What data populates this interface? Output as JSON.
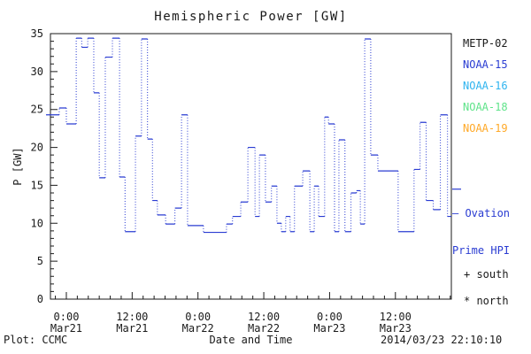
{
  "title": "Hemispheric Power [GW]",
  "colors": {
    "axis": "#1a1a1a",
    "line_blue": "#2a3cd2",
    "metp02": "#1a1a1a",
    "noaa15": "#2a3cd2",
    "noaa16": "#2fb4ef",
    "noaa18": "#5fe38a",
    "noaa19": "#ffa928"
  },
  "legend": {
    "items": [
      {
        "label": "METP-02",
        "color": "#1a1a1a"
      },
      {
        "label": "NOAA-15",
        "color": "#2a3cd2"
      },
      {
        "label": "NOAA-16",
        "color": "#2fb4ef"
      },
      {
        "label": "NOAA-18",
        "color": "#5fe38a"
      },
      {
        "label": "NOAA-19",
        "color": "#ffa928"
      }
    ]
  },
  "annotations": {
    "ovation_line1": "– Ovation",
    "ovation_line2": "Prime HPI",
    "ovation_pointer_gw": 14.5,
    "south": "+ south",
    "north": "* north",
    "credit": "Plot: CCMC",
    "timestamp": "2014/03/23 22:10:10"
  },
  "chart_data": {
    "type": "line",
    "subtype": "dotted-step",
    "title": "Hemispheric Power [GW]",
    "xlabel": "Date and Time",
    "ylabel": "P [GW]",
    "ylim": [
      0,
      35
    ],
    "y_major_ticks": [
      0,
      5,
      10,
      15,
      20,
      25,
      30,
      35
    ],
    "y_minor_step": 1,
    "x_total_hours": 73.1,
    "x_minor_start": 0.9,
    "x_minor_step_hours": 2,
    "x_major_ticks": [
      {
        "hour": 2.9,
        "time": "0:00",
        "date": "Mar21"
      },
      {
        "hour": 14.9,
        "time": "12:00",
        "date": "Mar21"
      },
      {
        "hour": 26.9,
        "time": "0:00",
        "date": "Mar22"
      },
      {
        "hour": 38.9,
        "time": "12:00",
        "date": "Mar22"
      },
      {
        "hour": 50.9,
        "time": "0:00",
        "date": "Mar23"
      },
      {
        "hour": 62.9,
        "time": "12:00",
        "date": "Mar23"
      }
    ],
    "grid": false,
    "legend_position": "right-outside",
    "series": [
      {
        "name": "Ovation Prime HPI",
        "color": "#2a3cd2",
        "units": "GW",
        "steps": [
          [
            0.0,
            24.3
          ],
          [
            1.6,
            25.2
          ],
          [
            2.9,
            23.1
          ],
          [
            4.7,
            34.4
          ],
          [
            5.7,
            33.2
          ],
          [
            6.8,
            34.4
          ],
          [
            7.9,
            27.2
          ],
          [
            8.9,
            16.0
          ],
          [
            10.0,
            31.9
          ],
          [
            11.3,
            34.4
          ],
          [
            12.6,
            16.1
          ],
          [
            13.6,
            8.9
          ],
          [
            15.5,
            21.5
          ],
          [
            16.6,
            34.3
          ],
          [
            17.7,
            21.1
          ],
          [
            18.6,
            13.0
          ],
          [
            19.5,
            11.1
          ],
          [
            21.0,
            9.9
          ],
          [
            22.7,
            12.0
          ],
          [
            23.9,
            24.3
          ],
          [
            25.0,
            9.7
          ],
          [
            27.9,
            8.8
          ],
          [
            32.1,
            9.9
          ],
          [
            33.2,
            10.9
          ],
          [
            34.7,
            12.8
          ],
          [
            36.0,
            20.0
          ],
          [
            37.3,
            10.9
          ],
          [
            38.1,
            19.0
          ],
          [
            39.2,
            12.8
          ],
          [
            40.3,
            14.9
          ],
          [
            41.3,
            10.0
          ],
          [
            42.1,
            8.9
          ],
          [
            42.9,
            10.9
          ],
          [
            43.7,
            8.9
          ],
          [
            44.5,
            14.9
          ],
          [
            46.0,
            16.9
          ],
          [
            47.3,
            8.9
          ],
          [
            48.1,
            14.9
          ],
          [
            48.9,
            10.9
          ],
          [
            50.0,
            24.0
          ],
          [
            50.7,
            23.1
          ],
          [
            51.8,
            8.9
          ],
          [
            52.6,
            21.0
          ],
          [
            53.7,
            8.9
          ],
          [
            54.8,
            14.0
          ],
          [
            55.8,
            14.3
          ],
          [
            56.5,
            9.9
          ],
          [
            57.3,
            34.3
          ],
          [
            58.4,
            19.0
          ],
          [
            59.7,
            16.9
          ],
          [
            63.4,
            8.9
          ],
          [
            66.3,
            17.1
          ],
          [
            67.4,
            23.3
          ],
          [
            68.5,
            13.0
          ],
          [
            69.8,
            11.8
          ],
          [
            71.1,
            24.3
          ],
          [
            72.4,
            10.9
          ]
        ]
      }
    ]
  }
}
